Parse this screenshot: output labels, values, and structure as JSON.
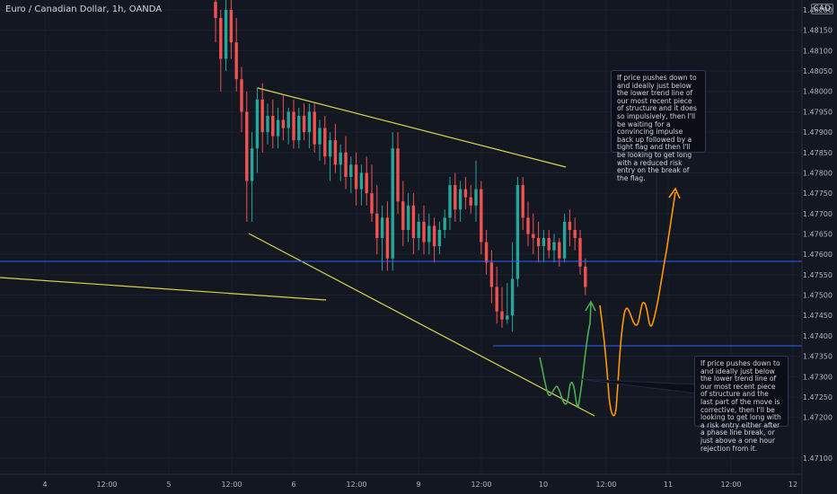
{
  "header": {
    "title": "Euro / Canadian Dollar, 1h, OANDA",
    "currency_badge": "CAD"
  },
  "notes": [
    "If price pushes down to and ideally just below the lower trend line of our most recent piece of structure and it does so impulsively, then I'll be waiting for a convincing impulse back up followed by a tight flag and then I'll be looking to get long with a reduced risk entry on the break of the flag.",
    "If price pushes down to and ideally just below the lower trend line of our most recent piece of structure and the last part of the move is corrective, then I'll be looking to get long with a risk entry either after a phase line break, or just above a one hour rejection from it."
  ],
  "colors": {
    "background": "#131722",
    "up": "#26a69a",
    "down": "#ef5350",
    "trendline": "#d8d44a",
    "level": "#2962ff",
    "green_path": "#4caf50",
    "orange_path": "#ff9800",
    "text": "#b2b5be"
  },
  "chart_data": {
    "type": "candlestick",
    "title": "Euro / Canadian Dollar, 1h, OANDA",
    "x_ticks": [
      "4",
      "12:00",
      "5",
      "12:00",
      "6",
      "12:00",
      "9",
      "12:00",
      "10",
      "12:00",
      "11",
      "12:00",
      "12"
    ],
    "y_ticks": [
      1.471,
      1.472,
      1.4725,
      1.473,
      1.4735,
      1.474,
      1.4745,
      1.475,
      1.4755,
      1.476,
      1.4765,
      1.477,
      1.4775,
      1.478,
      1.4785,
      1.479,
      1.4795,
      1.48,
      1.4805,
      1.481,
      1.4815,
      1.482
    ],
    "ylim": [
      1.4706,
      1.4823
    ],
    "horizontal_levels": [
      1.4761,
      1.4741
    ],
    "candles": [
      {
        "o": 1.4822,
        "h": 1.4823,
        "l": 1.4812,
        "c": 1.4818
      },
      {
        "o": 1.4818,
        "h": 1.482,
        "l": 1.48,
        "c": 1.4808
      },
      {
        "o": 1.4808,
        "h": 1.4824,
        "l": 1.4805,
        "c": 1.482
      },
      {
        "o": 1.482,
        "h": 1.4823,
        "l": 1.4808,
        "c": 1.4812
      },
      {
        "o": 1.4812,
        "h": 1.4818,
        "l": 1.48,
        "c": 1.4803
      },
      {
        "o": 1.4803,
        "h": 1.4806,
        "l": 1.479,
        "c": 1.4795
      },
      {
        "o": 1.4795,
        "h": 1.48,
        "l": 1.4768,
        "c": 1.4778
      },
      {
        "o": 1.4778,
        "h": 1.479,
        "l": 1.4768,
        "c": 1.4786
      },
      {
        "o": 1.4786,
        "h": 1.4801,
        "l": 1.478,
        "c": 1.4798
      },
      {
        "o": 1.4798,
        "h": 1.4802,
        "l": 1.4785,
        "c": 1.479
      },
      {
        "o": 1.479,
        "h": 1.4797,
        "l": 1.4787,
        "c": 1.4794
      },
      {
        "o": 1.4794,
        "h": 1.4798,
        "l": 1.4786,
        "c": 1.4789
      },
      {
        "o": 1.4789,
        "h": 1.4796,
        "l": 1.4786,
        "c": 1.4793
      },
      {
        "o": 1.4793,
        "h": 1.4799,
        "l": 1.4788,
        "c": 1.4791
      },
      {
        "o": 1.4791,
        "h": 1.4796,
        "l": 1.4787,
        "c": 1.4795
      },
      {
        "o": 1.4795,
        "h": 1.4798,
        "l": 1.4786,
        "c": 1.4788
      },
      {
        "o": 1.4788,
        "h": 1.4796,
        "l": 1.4786,
        "c": 1.4794
      },
      {
        "o": 1.4794,
        "h": 1.4797,
        "l": 1.4788,
        "c": 1.479
      },
      {
        "o": 1.479,
        "h": 1.4797,
        "l": 1.4786,
        "c": 1.4795
      },
      {
        "o": 1.4795,
        "h": 1.4797,
        "l": 1.4785,
        "c": 1.4787
      },
      {
        "o": 1.4787,
        "h": 1.4793,
        "l": 1.4783,
        "c": 1.4791
      },
      {
        "o": 1.4791,
        "h": 1.4794,
        "l": 1.4782,
        "c": 1.4784
      },
      {
        "o": 1.4784,
        "h": 1.479,
        "l": 1.4778,
        "c": 1.4788
      },
      {
        "o": 1.4788,
        "h": 1.4792,
        "l": 1.478,
        "c": 1.4782
      },
      {
        "o": 1.4782,
        "h": 1.4787,
        "l": 1.4778,
        "c": 1.4785
      },
      {
        "o": 1.4785,
        "h": 1.4789,
        "l": 1.4776,
        "c": 1.4779
      },
      {
        "o": 1.4779,
        "h": 1.4784,
        "l": 1.4775,
        "c": 1.4782
      },
      {
        "o": 1.4782,
        "h": 1.4785,
        "l": 1.4772,
        "c": 1.4776
      },
      {
        "o": 1.4776,
        "h": 1.4782,
        "l": 1.4772,
        "c": 1.478
      },
      {
        "o": 1.478,
        "h": 1.4784,
        "l": 1.4772,
        "c": 1.4775
      },
      {
        "o": 1.4775,
        "h": 1.4782,
        "l": 1.4768,
        "c": 1.477
      },
      {
        "o": 1.477,
        "h": 1.4777,
        "l": 1.476,
        "c": 1.4764
      },
      {
        "o": 1.4764,
        "h": 1.4772,
        "l": 1.4756,
        "c": 1.4769
      },
      {
        "o": 1.4769,
        "h": 1.4773,
        "l": 1.4756,
        "c": 1.4759
      },
      {
        "o": 1.4759,
        "h": 1.479,
        "l": 1.4756,
        "c": 1.4786
      },
      {
        "o": 1.4786,
        "h": 1.479,
        "l": 1.477,
        "c": 1.4773
      },
      {
        "o": 1.4773,
        "h": 1.4778,
        "l": 1.4762,
        "c": 1.4766
      },
      {
        "o": 1.4766,
        "h": 1.4775,
        "l": 1.4763,
        "c": 1.4772
      },
      {
        "o": 1.4772,
        "h": 1.4775,
        "l": 1.476,
        "c": 1.4764
      },
      {
        "o": 1.4764,
        "h": 1.477,
        "l": 1.4761,
        "c": 1.4768
      },
      {
        "o": 1.4768,
        "h": 1.4772,
        "l": 1.476,
        "c": 1.4763
      },
      {
        "o": 1.4763,
        "h": 1.477,
        "l": 1.476,
        "c": 1.4767
      },
      {
        "o": 1.4767,
        "h": 1.4769,
        "l": 1.4758,
        "c": 1.4762
      },
      {
        "o": 1.4762,
        "h": 1.4768,
        "l": 1.476,
        "c": 1.4766
      },
      {
        "o": 1.4766,
        "h": 1.4771,
        "l": 1.4764,
        "c": 1.4769
      },
      {
        "o": 1.4769,
        "h": 1.4779,
        "l": 1.4766,
        "c": 1.4777
      },
      {
        "o": 1.4777,
        "h": 1.478,
        "l": 1.4768,
        "c": 1.4771
      },
      {
        "o": 1.4771,
        "h": 1.4778,
        "l": 1.4768,
        "c": 1.4776
      },
      {
        "o": 1.4776,
        "h": 1.4779,
        "l": 1.4771,
        "c": 1.4774
      },
      {
        "o": 1.4774,
        "h": 1.4777,
        "l": 1.477,
        "c": 1.4772
      },
      {
        "o": 1.4772,
        "h": 1.4783,
        "l": 1.4768,
        "c": 1.4776
      },
      {
        "o": 1.4776,
        "h": 1.4778,
        "l": 1.476,
        "c": 1.4763
      },
      {
        "o": 1.4763,
        "h": 1.4766,
        "l": 1.4755,
        "c": 1.4758
      },
      {
        "o": 1.4758,
        "h": 1.4761,
        "l": 1.4748,
        "c": 1.4752
      },
      {
        "o": 1.4752,
        "h": 1.4757,
        "l": 1.4743,
        "c": 1.4746
      },
      {
        "o": 1.4746,
        "h": 1.4752,
        "l": 1.4742,
        "c": 1.4744
      },
      {
        "o": 1.4744,
        "h": 1.4753,
        "l": 1.4743,
        "c": 1.4745
      },
      {
        "o": 1.4745,
        "h": 1.4763,
        "l": 1.4741,
        "c": 1.4754
      },
      {
        "o": 1.4754,
        "h": 1.4779,
        "l": 1.4752,
        "c": 1.4777
      },
      {
        "o": 1.4777,
        "h": 1.4779,
        "l": 1.4766,
        "c": 1.4769
      },
      {
        "o": 1.4769,
        "h": 1.4773,
        "l": 1.4762,
        "c": 1.4765
      },
      {
        "o": 1.4765,
        "h": 1.477,
        "l": 1.476,
        "c": 1.4764
      },
      {
        "o": 1.4764,
        "h": 1.4768,
        "l": 1.4758,
        "c": 1.4762
      },
      {
        "o": 1.4762,
        "h": 1.4766,
        "l": 1.4758,
        "c": 1.4764
      },
      {
        "o": 1.4764,
        "h": 1.4766,
        "l": 1.4759,
        "c": 1.4761
      },
      {
        "o": 1.4761,
        "h": 1.4765,
        "l": 1.4758,
        "c": 1.4763
      },
      {
        "o": 1.4763,
        "h": 1.4764,
        "l": 1.4757,
        "c": 1.4759
      },
      {
        "o": 1.4759,
        "h": 1.477,
        "l": 1.4758,
        "c": 1.4768
      },
      {
        "o": 1.4768,
        "h": 1.4771,
        "l": 1.4762,
        "c": 1.4766
      },
      {
        "o": 1.4766,
        "h": 1.4769,
        "l": 1.4761,
        "c": 1.4764
      },
      {
        "o": 1.4764,
        "h": 1.4766,
        "l": 1.4755,
        "c": 1.4757
      },
      {
        "o": 1.4757,
        "h": 1.4759,
        "l": 1.475,
        "c": 1.4752
      }
    ]
  }
}
